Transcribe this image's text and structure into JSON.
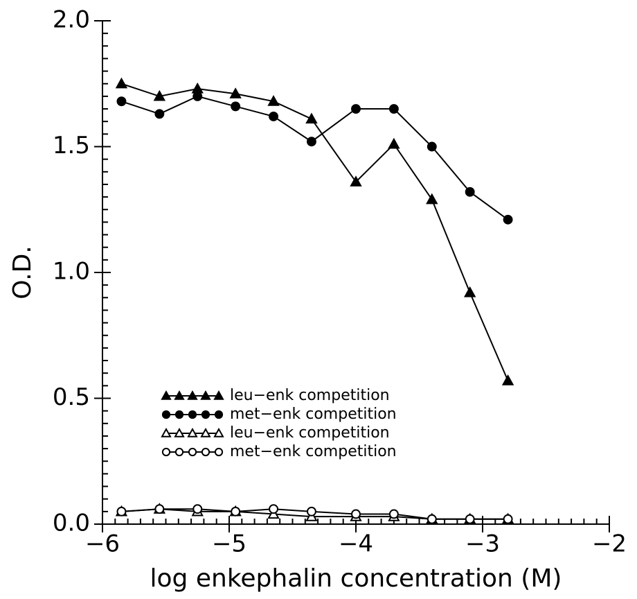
{
  "chart_data": {
    "type": "line",
    "xlabel": "log enkephalin concentration (M)",
    "ylabel": "O.D.",
    "x": [
      -5.85,
      -5.55,
      -5.25,
      -4.95,
      -4.65,
      -4.35,
      -4.0,
      -3.7,
      -3.4,
      -3.1,
      -2.8
    ],
    "series": [
      {
        "name": "leu−enk competition",
        "color": "#000000",
        "marker": "triangle",
        "filled": true,
        "values": [
          1.75,
          1.7,
          1.73,
          1.71,
          1.68,
          1.61,
          1.36,
          1.51,
          1.29,
          0.92,
          0.57
        ]
      },
      {
        "name": "met−enk competition",
        "color": "#000000",
        "marker": "circle",
        "filled": true,
        "values": [
          1.68,
          1.63,
          1.7,
          1.66,
          1.62,
          1.52,
          1.65,
          1.65,
          1.5,
          1.32,
          1.21
        ]
      },
      {
        "name": "leu−enk competition",
        "color": "#000000",
        "marker": "triangle",
        "filled": false,
        "values": [
          0.05,
          0.06,
          0.05,
          0.05,
          0.04,
          0.03,
          0.03,
          0.03,
          0.02,
          0.02,
          0.02
        ]
      },
      {
        "name": "met−enk competition",
        "color": "#000000",
        "marker": "circle",
        "filled": false,
        "values": [
          0.05,
          0.06,
          0.06,
          0.05,
          0.06,
          0.05,
          0.04,
          0.04,
          0.02,
          0.02,
          0.02
        ]
      }
    ],
    "xlim": [
      -6,
      -2
    ],
    "ylim": [
      0,
      2
    ],
    "xticks": [
      {
        "value": -6,
        "label": "−6"
      },
      {
        "value": -5,
        "label": "−5"
      },
      {
        "value": -4,
        "label": "−4"
      },
      {
        "value": -3,
        "label": "−3"
      },
      {
        "value": -2,
        "label": "−2"
      }
    ],
    "yticks": [
      {
        "value": 0,
        "label": "0.0"
      },
      {
        "value": 0.5,
        "label": "0.5"
      },
      {
        "value": 1,
        "label": "1.0"
      },
      {
        "value": 1.5,
        "label": "1.5"
      },
      {
        "value": 2,
        "label": "2.0"
      }
    ],
    "xminorticks": [
      -5.9,
      -5.8,
      -5.7,
      -5.6,
      -5.5,
      -5.4,
      -5.3,
      -5.2,
      -5.1,
      -4.9,
      -4.8,
      -4.7,
      -4.6,
      -4.5,
      -4.4,
      -4.3,
      -4.2,
      -4.1,
      -3.9,
      -3.8,
      -3.7,
      -3.6,
      -3.5,
      -3.4,
      -3.3,
      -3.2,
      -3.1,
      -2.9,
      -2.8,
      -2.7,
      -2.6,
      -2.5,
      -2.4,
      -2.3,
      -2.2,
      -2.1
    ],
    "yminorticks": [
      0.05,
      0.1,
      0.15,
      0.2,
      0.25,
      0.3,
      0.35,
      0.4,
      0.45,
      0.55,
      0.6,
      0.65,
      0.7,
      0.75,
      0.8,
      0.85,
      0.9,
      0.95,
      1.05,
      1.1,
      1.15,
      1.2,
      1.25,
      1.3,
      1.35,
      1.4,
      1.45,
      1.55,
      1.6,
      1.65,
      1.7,
      1.75,
      1.8,
      1.85,
      1.9,
      1.95
    ],
    "grid": false,
    "legend": "lower-left"
  }
}
